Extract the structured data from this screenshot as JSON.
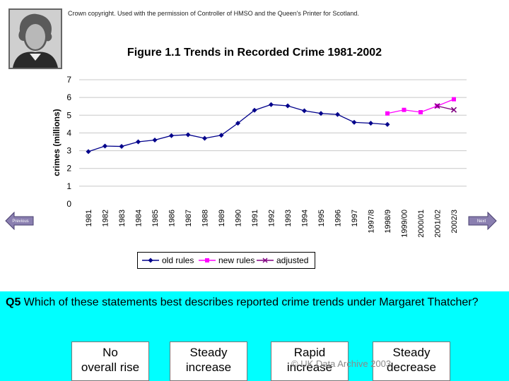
{
  "copyright": "Crown copyright. Used with the permission of Controller of HMSO and the Queen's Printer for Scotland.",
  "nav": {
    "previous": "Previous",
    "next": "Next"
  },
  "question": {
    "number": "Q5",
    "text": "Which of these statements best describes reported crime trends under Margaret Thatcher?"
  },
  "answers": [
    {
      "line1": "No",
      "line2": "overall rise"
    },
    {
      "line1": "Steady",
      "line2": "increase"
    },
    {
      "line1": "Rapid",
      "line2": "increase"
    },
    {
      "line1": "Steady",
      "line2": "decrease"
    }
  ],
  "watermark": "© UK Data Archive 2003",
  "colors": {
    "panel": "#00ffff",
    "old": "#00008b",
    "new": "#ff00ff",
    "adjusted": "#800080"
  },
  "chart_data": {
    "type": "line",
    "title": "Figure 1.1 Trends in Recorded Crime 1981-2002",
    "xlabel": "",
    "ylabel": "crimes (millions)",
    "ylim": [
      0,
      7
    ],
    "yticks": [
      0,
      1,
      2,
      3,
      4,
      5,
      6,
      7
    ],
    "grid": "horizontal",
    "legend_position": "bottom",
    "categories": [
      "1981",
      "1982",
      "1983",
      "1984",
      "1985",
      "1986",
      "1987",
      "1988",
      "1989",
      "1990",
      "1991",
      "1992",
      "1993",
      "1994",
      "1995",
      "1996",
      "1997",
      "1997/8",
      "1998/9",
      "1999/00",
      "2000/01",
      "2001/02",
      "2002/3"
    ],
    "series": [
      {
        "name": "old rules",
        "color": "#00008b",
        "marker": "diamond",
        "values": [
          2.95,
          3.26,
          3.24,
          3.5,
          3.6,
          3.85,
          3.9,
          3.7,
          3.87,
          4.55,
          5.28,
          5.6,
          5.53,
          5.25,
          5.1,
          5.04,
          4.6,
          4.55,
          4.48,
          null,
          null,
          null,
          null
        ]
      },
      {
        "name": "new rules",
        "color": "#ff00ff",
        "marker": "square",
        "values": [
          null,
          null,
          null,
          null,
          null,
          null,
          null,
          null,
          null,
          null,
          null,
          null,
          null,
          null,
          null,
          null,
          null,
          null,
          5.1,
          5.3,
          5.17,
          5.52,
          5.9
        ]
      },
      {
        "name": "adjusted",
        "color": "#800080",
        "marker": "x",
        "values": [
          null,
          null,
          null,
          null,
          null,
          null,
          null,
          null,
          null,
          null,
          null,
          null,
          null,
          null,
          null,
          null,
          null,
          null,
          null,
          null,
          null,
          5.52,
          5.3
        ]
      }
    ]
  }
}
